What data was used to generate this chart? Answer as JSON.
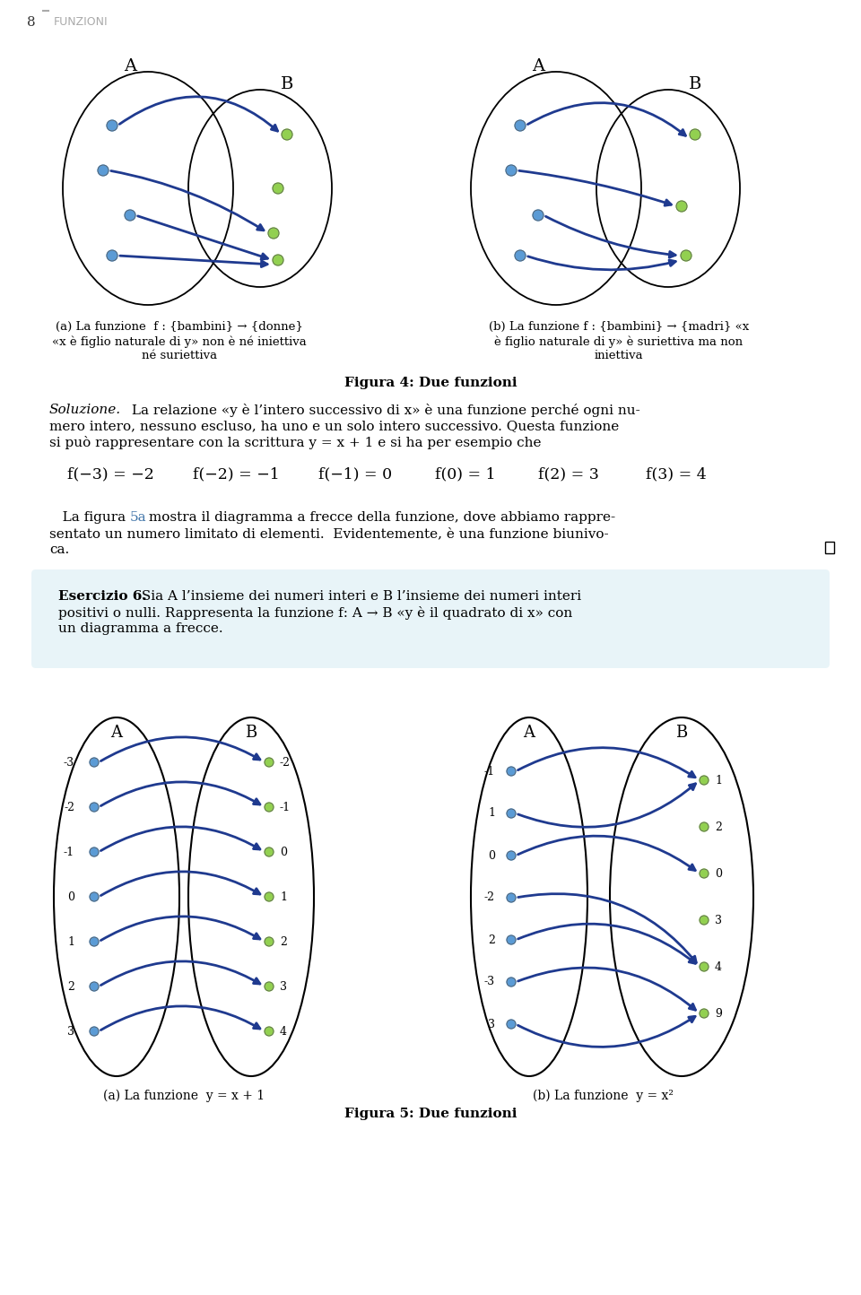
{
  "bg_color": "#ffffff",
  "header_text": "8   |   FUNZIONI",
  "fig4_title": "Figura 4: Due funzioni",
  "fig5_title": "Figura 5: Due funzioni",
  "fig4a_caption": "(a) La funzione  f : {bambini} → {donne}\n«x è figlio naturale di y» non è né iniettiva\nné suriettiva",
  "fig4b_caption": "(b) La funzione f : {bambini} → {madri} «x\nè figlio naturale di y» è suriettiva ma non\niniettiva",
  "solution_text1": "Soluzione.",
  "solution_text2": " La relazione «y è l’intero successivo di x» è una funzione perché ogni nu-\nmero intero, nessuno escluso, ha uno e un solo intero successivo. Questa funzione\nsi può rappresentare con la scrittura y = x + 1 e si ha per esempio che",
  "formula_line": "f(−3) = −2     f(−2) = −1     f(−1) = 0     f(0) = 1     f(2) = 3     f(3) = 4",
  "para_text": "   La figura 5a mostra il diagramma a frecce della funzione, dove abbiamo rappre-\nsentato un numero limitato di elementi.  Evidentemente, è una funzione biunivo-\nca.",
  "exercise_title": "Esercizio 6.",
  "exercise_text": " Sia A l’insieme dei numeri interi e B l’insieme dei numeri interi\npositivi o nulli. Rappresenta la funzione f: A → B «y è il quadrato di x» con\nun diagramma a frecce.",
  "fig5a_caption": "(a) La funzione  y = x + 1",
  "fig5b_caption": "(b) La funzione  y = x²",
  "dot_blue": "#5b9bd5",
  "dot_green": "#92d050",
  "arrow_color": "#1f3a8f",
  "ellipse_color": "#1a1a1a",
  "exercise_bg": "#e8f4f8"
}
